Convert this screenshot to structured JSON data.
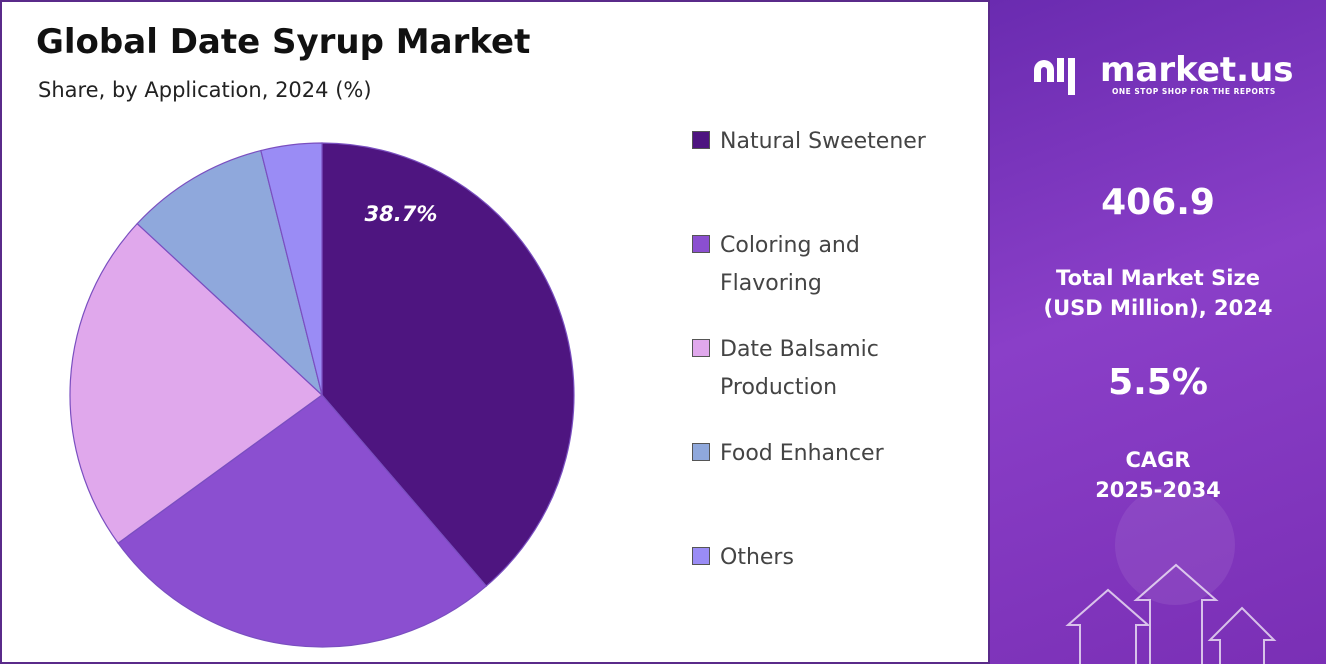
{
  "chart_data": {
    "type": "pie",
    "title": "Global Date Syrup Market",
    "subtitle": "Share, by Application, 2024 (%)",
    "categories": [
      "Natural Sweetener",
      "Coloring and Flavoring",
      "Date Balsamic Production",
      "Food Enhancer",
      "Others"
    ],
    "values": [
      38.7,
      26.3,
      21.9,
      9.2,
      3.9
    ],
    "value_labels": [
      "38.7%",
      null,
      null,
      null,
      null
    ],
    "colors": [
      "#4e1580",
      "#8b4fd0",
      "#e0a8ec",
      "#8fa8dc",
      "#9a8cf5"
    ],
    "legend": "right"
  },
  "panel": {
    "brand": "market.us",
    "tagline": "ONE STOP SHOP FOR THE REPORTS",
    "market_size": "406.9",
    "market_size_label": [
      "Total Market Size",
      "(USD Million), 2024"
    ],
    "cagr": "5.5%",
    "cagr_label": [
      "CAGR",
      "2025-2034"
    ]
  }
}
